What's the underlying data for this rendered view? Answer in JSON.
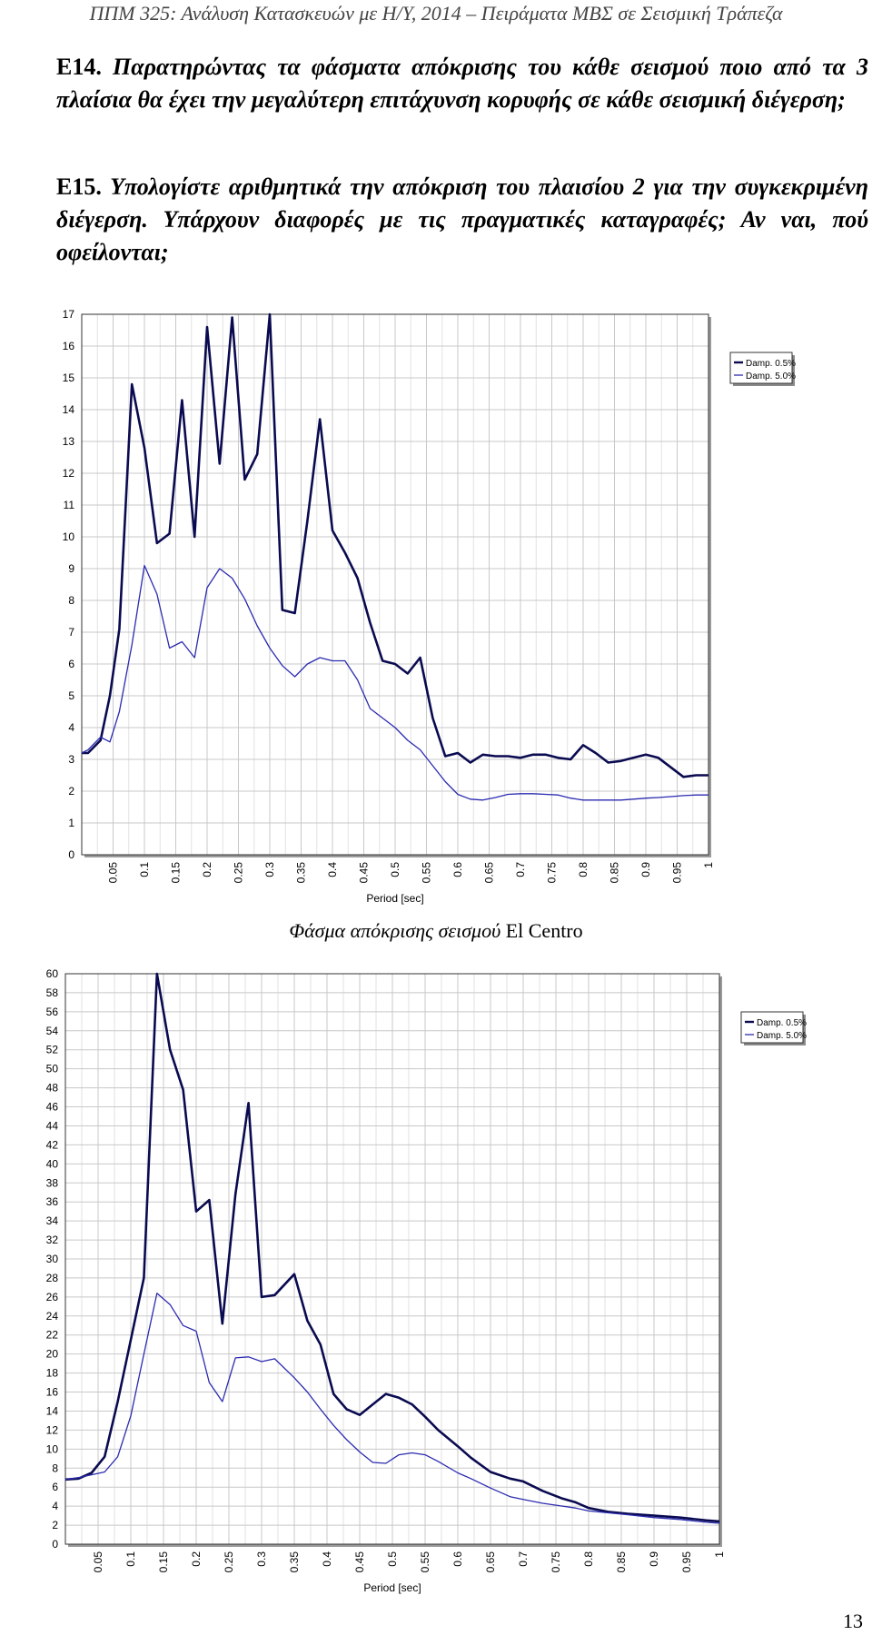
{
  "page": {
    "header": "ΠΠΜ 325: Ανάλυση Κατασκευών με Η/Υ, 2014 – Πειράματα ΜΒΣ σε Σεισμική Τράπεζα",
    "q14": {
      "number": "Ε14.",
      "text": "Παρατηρώντας τα φάσματα απόκρισης του κάθε σεισμού ποιο από τα 3 πλαίσια θα έχει την μεγαλύτερη επιτάχυνση κορυφής σε κάθε σεισμική διέγερση;"
    },
    "q15": {
      "number": "Ε15.",
      "text": "Υπολογίστε αριθμητικά την απόκριση του πλαισίου 2 για την συγκεκριμένη διέγερση. Υπάρχουν διαφορές με τις πραγματικές καταγραφές; Αν ναι, πού οφείλονται;"
    },
    "caption_italic": "Φάσμα απόκρισης σεισμού",
    "caption_normal": "El Centro",
    "page_number": "13"
  },
  "chart_data": [
    {
      "type": "line",
      "xlabel": "Period [sec]",
      "ylabel": "",
      "xlim": [
        0,
        1
      ],
      "ylim": [
        0,
        17
      ],
      "xticks": [
        "0.05",
        "0.1",
        "0.15",
        "0.2",
        "0.25",
        "0.3",
        "0.35",
        "0.4",
        "0.45",
        "0.5",
        "0.55",
        "0.6",
        "0.65",
        "0.7",
        "0.75",
        "0.8",
        "0.85",
        "0.9",
        "0.95",
        "1"
      ],
      "yticks": [
        "0",
        "1",
        "2",
        "3",
        "4",
        "5",
        "6",
        "7",
        "8",
        "9",
        "10",
        "11",
        "12",
        "13",
        "14",
        "15",
        "16",
        "17"
      ],
      "grid": true,
      "legend": "top-right",
      "series": [
        {
          "name": "Damp. 0.5%",
          "color": "#0a0a50",
          "x": [
            0,
            0.01,
            0.03,
            0.045,
            0.06,
            0.08,
            0.1,
            0.12,
            0.14,
            0.16,
            0.18,
            0.2,
            0.22,
            0.24,
            0.26,
            0.28,
            0.3,
            0.32,
            0.34,
            0.36,
            0.38,
            0.4,
            0.42,
            0.44,
            0.46,
            0.48,
            0.5,
            0.52,
            0.54,
            0.56,
            0.58,
            0.6,
            0.62,
            0.64,
            0.66,
            0.68,
            0.7,
            0.72,
            0.74,
            0.76,
            0.78,
            0.8,
            0.82,
            0.84,
            0.86,
            0.88,
            0.9,
            0.92,
            0.94,
            0.96,
            0.98,
            1.0
          ],
          "values": [
            3.2,
            3.2,
            3.6,
            5.0,
            7.1,
            14.8,
            12.8,
            9.8,
            10.1,
            14.3,
            10.0,
            16.6,
            12.3,
            16.9,
            11.8,
            12.6,
            17.2,
            7.7,
            7.6,
            10.5,
            13.7,
            10.2,
            9.5,
            8.7,
            7.3,
            6.1,
            6.0,
            5.7,
            6.2,
            4.3,
            3.1,
            3.2,
            2.9,
            3.15,
            3.1,
            3.1,
            3.05,
            3.15,
            3.15,
            3.05,
            3.0,
            3.45,
            3.2,
            2.9,
            2.95,
            3.05,
            3.15,
            3.05,
            2.75,
            2.45,
            2.5,
            2.5
          ]
        },
        {
          "name": "Damp. 5.0%",
          "color": "#2b2bb0",
          "x": [
            0,
            0.01,
            0.03,
            0.045,
            0.06,
            0.08,
            0.1,
            0.12,
            0.14,
            0.16,
            0.18,
            0.2,
            0.22,
            0.24,
            0.26,
            0.28,
            0.3,
            0.32,
            0.34,
            0.36,
            0.38,
            0.4,
            0.42,
            0.44,
            0.46,
            0.48,
            0.5,
            0.52,
            0.54,
            0.56,
            0.58,
            0.6,
            0.62,
            0.64,
            0.66,
            0.68,
            0.7,
            0.72,
            0.74,
            0.76,
            0.78,
            0.8,
            0.82,
            0.84,
            0.86,
            0.88,
            0.9,
            0.92,
            0.94,
            0.96,
            0.98,
            1.0
          ],
          "values": [
            3.2,
            3.3,
            3.7,
            3.55,
            4.5,
            6.6,
            9.1,
            8.2,
            6.5,
            6.7,
            6.2,
            8.4,
            9.0,
            8.7,
            8.05,
            7.2,
            6.5,
            5.95,
            5.6,
            6.0,
            6.2,
            6.1,
            6.1,
            5.5,
            4.6,
            4.3,
            4.0,
            3.6,
            3.3,
            2.8,
            2.3,
            1.9,
            1.75,
            1.72,
            1.8,
            1.9,
            1.92,
            1.92,
            1.9,
            1.88,
            1.78,
            1.72,
            1.72,
            1.72,
            1.72,
            1.75,
            1.78,
            1.8,
            1.83,
            1.86,
            1.88,
            1.88
          ]
        }
      ]
    },
    {
      "type": "line",
      "xlabel": "Period [sec]",
      "ylabel": "",
      "xlim": [
        0,
        1
      ],
      "ylim": [
        0,
        60
      ],
      "xticks": [
        "0.05",
        "0.1",
        "0.15",
        "0.2",
        "0.25",
        "0.3",
        "0.35",
        "0.4",
        "0.45",
        "0.5",
        "0.55",
        "0.6",
        "0.65",
        "0.7",
        "0.75",
        "0.8",
        "0.85",
        "0.9",
        "0.95",
        "1"
      ],
      "yticks": [
        "0",
        "2",
        "4",
        "6",
        "8",
        "10",
        "12",
        "14",
        "16",
        "18",
        "20",
        "22",
        "24",
        "26",
        "28",
        "30",
        "32",
        "34",
        "36",
        "38",
        "40",
        "42",
        "44",
        "46",
        "48",
        "50",
        "52",
        "54",
        "56",
        "58",
        "60"
      ],
      "grid": true,
      "legend": "top-right",
      "series": [
        {
          "name": "Damp. 0.5%",
          "color": "#0a0a50",
          "x": [
            0,
            0.02,
            0.04,
            0.06,
            0.08,
            0.1,
            0.12,
            0.14,
            0.16,
            0.18,
            0.2,
            0.22,
            0.24,
            0.26,
            0.28,
            0.3,
            0.32,
            0.35,
            0.37,
            0.39,
            0.41,
            0.43,
            0.45,
            0.47,
            0.49,
            0.51,
            0.53,
            0.55,
            0.57,
            0.6,
            0.62,
            0.65,
            0.68,
            0.7,
            0.73,
            0.76,
            0.78,
            0.8,
            0.83,
            0.86,
            0.9,
            0.94,
            0.98,
            1.0
          ],
          "values": [
            6.8,
            6.9,
            7.5,
            9.2,
            15.0,
            21.5,
            28.0,
            60.0,
            52.0,
            47.8,
            35.0,
            36.2,
            23.2,
            36.8,
            46.4,
            26.0,
            26.2,
            28.4,
            23.5,
            21.0,
            15.8,
            14.2,
            13.6,
            14.7,
            15.8,
            15.4,
            14.7,
            13.4,
            12.0,
            10.3,
            9.1,
            7.6,
            6.9,
            6.6,
            5.6,
            4.8,
            4.4,
            3.8,
            3.4,
            3.2,
            3.0,
            2.8,
            2.5,
            2.4
          ]
        },
        {
          "name": "Damp. 5.0%",
          "color": "#2b2bb0",
          "x": [
            0,
            0.02,
            0.04,
            0.06,
            0.08,
            0.1,
            0.12,
            0.14,
            0.16,
            0.18,
            0.2,
            0.22,
            0.24,
            0.26,
            0.28,
            0.3,
            0.32,
            0.35,
            0.37,
            0.39,
            0.41,
            0.43,
            0.45,
            0.47,
            0.49,
            0.51,
            0.53,
            0.55,
            0.57,
            0.6,
            0.62,
            0.65,
            0.68,
            0.7,
            0.73,
            0.76,
            0.78,
            0.8,
            0.83,
            0.86,
            0.9,
            0.94,
            0.98,
            1.0
          ],
          "values": [
            6.8,
            7.0,
            7.3,
            7.6,
            9.2,
            13.5,
            20.0,
            26.4,
            25.2,
            23.0,
            22.4,
            17.0,
            15.0,
            19.6,
            19.7,
            19.2,
            19.5,
            17.5,
            16.0,
            14.2,
            12.5,
            11.0,
            9.7,
            8.6,
            8.5,
            9.4,
            9.6,
            9.4,
            8.7,
            7.5,
            6.9,
            5.9,
            5.0,
            4.7,
            4.3,
            4.0,
            3.8,
            3.5,
            3.3,
            3.1,
            2.8,
            2.6,
            2.3,
            2.2
          ]
        }
      ]
    }
  ]
}
